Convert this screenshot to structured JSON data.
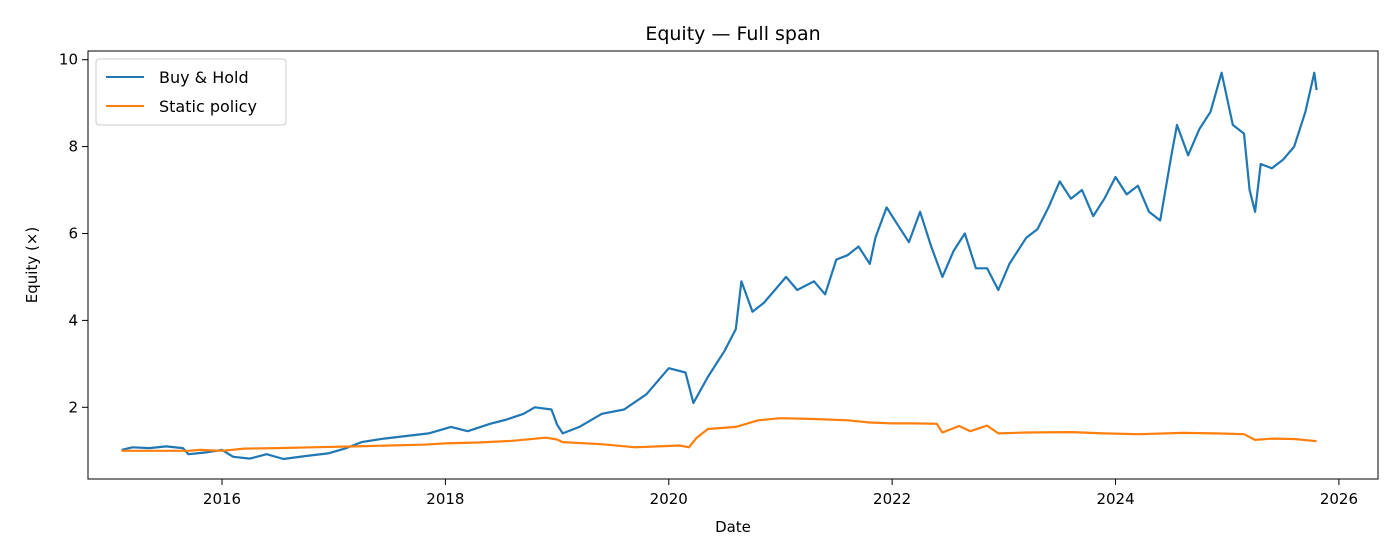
{
  "chart_data": {
    "type": "line",
    "title": "Equity — Full span",
    "xlabel": "Date",
    "ylabel": "Equity (×)",
    "x_ticks": [
      "2016",
      "2018",
      "2020",
      "2022",
      "2024",
      "2026"
    ],
    "y_ticks": [
      "2",
      "4",
      "6",
      "8",
      "10"
    ],
    "xlim": [
      2014.8,
      2026.35
    ],
    "ylim": [
      0.35,
      10.2
    ],
    "legend_position": "top-left",
    "grid": false,
    "series": [
      {
        "name": "Buy & Hold",
        "color": "#1f77b4",
        "points": [
          [
            2015.1,
            1.02
          ],
          [
            2015.2,
            1.08
          ],
          [
            2015.35,
            1.06
          ],
          [
            2015.5,
            1.1
          ],
          [
            2015.65,
            1.06
          ],
          [
            2015.7,
            0.92
          ],
          [
            2015.85,
            0.96
          ],
          [
            2016.0,
            1.02
          ],
          [
            2016.1,
            0.86
          ],
          [
            2016.25,
            0.82
          ],
          [
            2016.4,
            0.92
          ],
          [
            2016.55,
            0.81
          ],
          [
            2016.75,
            0.88
          ],
          [
            2016.95,
            0.94
          ],
          [
            2017.1,
            1.05
          ],
          [
            2017.25,
            1.2
          ],
          [
            2017.45,
            1.28
          ],
          [
            2017.65,
            1.34
          ],
          [
            2017.85,
            1.4
          ],
          [
            2018.05,
            1.55
          ],
          [
            2018.2,
            1.45
          ],
          [
            2018.4,
            1.62
          ],
          [
            2018.55,
            1.72
          ],
          [
            2018.7,
            1.85
          ],
          [
            2018.8,
            2.0
          ],
          [
            2018.95,
            1.95
          ],
          [
            2019.0,
            1.6
          ],
          [
            2019.05,
            1.4
          ],
          [
            2019.2,
            1.55
          ],
          [
            2019.4,
            1.85
          ],
          [
            2019.6,
            1.95
          ],
          [
            2019.8,
            2.3
          ],
          [
            2020.0,
            2.9
          ],
          [
            2020.15,
            2.8
          ],
          [
            2020.22,
            2.1
          ],
          [
            2020.35,
            2.7
          ],
          [
            2020.5,
            3.3
          ],
          [
            2020.6,
            3.8
          ],
          [
            2020.65,
            4.9
          ],
          [
            2020.75,
            4.2
          ],
          [
            2020.85,
            4.4
          ],
          [
            2020.95,
            4.7
          ],
          [
            2021.05,
            5.0
          ],
          [
            2021.15,
            4.7
          ],
          [
            2021.3,
            4.9
          ],
          [
            2021.4,
            4.6
          ],
          [
            2021.5,
            5.4
          ],
          [
            2021.6,
            5.5
          ],
          [
            2021.7,
            5.7
          ],
          [
            2021.8,
            5.3
          ],
          [
            2021.85,
            5.9
          ],
          [
            2021.95,
            6.6
          ],
          [
            2022.05,
            6.2
          ],
          [
            2022.15,
            5.8
          ],
          [
            2022.25,
            6.5
          ],
          [
            2022.35,
            5.7
          ],
          [
            2022.45,
            5.0
          ],
          [
            2022.55,
            5.6
          ],
          [
            2022.65,
            6.0
          ],
          [
            2022.75,
            5.2
          ],
          [
            2022.85,
            5.2
          ],
          [
            2022.95,
            4.7
          ],
          [
            2023.05,
            5.3
          ],
          [
            2023.2,
            5.9
          ],
          [
            2023.3,
            6.1
          ],
          [
            2023.4,
            6.6
          ],
          [
            2023.5,
            7.2
          ],
          [
            2023.6,
            6.8
          ],
          [
            2023.7,
            7.0
          ],
          [
            2023.8,
            6.4
          ],
          [
            2023.9,
            6.8
          ],
          [
            2024.0,
            7.3
          ],
          [
            2024.1,
            6.9
          ],
          [
            2024.2,
            7.1
          ],
          [
            2024.3,
            6.5
          ],
          [
            2024.4,
            6.3
          ],
          [
            2024.5,
            7.8
          ],
          [
            2024.55,
            8.5
          ],
          [
            2024.65,
            7.8
          ],
          [
            2024.75,
            8.4
          ],
          [
            2024.85,
            8.8
          ],
          [
            2024.95,
            9.7
          ],
          [
            2025.05,
            8.5
          ],
          [
            2025.15,
            8.3
          ],
          [
            2025.2,
            7.0
          ],
          [
            2025.25,
            6.5
          ],
          [
            2025.3,
            7.6
          ],
          [
            2025.4,
            7.5
          ],
          [
            2025.5,
            7.7
          ],
          [
            2025.6,
            8.0
          ],
          [
            2025.7,
            8.8
          ],
          [
            2025.78,
            9.7
          ],
          [
            2025.8,
            9.3
          ]
        ]
      },
      {
        "name": "Static policy",
        "color": "#ff7f0e",
        "points": [
          [
            2015.1,
            1.0
          ],
          [
            2015.5,
            1.0
          ],
          [
            2015.7,
            1.0
          ],
          [
            2015.8,
            1.02
          ],
          [
            2016.0,
            1.0
          ],
          [
            2016.2,
            1.05
          ],
          [
            2016.5,
            1.06
          ],
          [
            2016.8,
            1.08
          ],
          [
            2017.2,
            1.1
          ],
          [
            2017.5,
            1.12
          ],
          [
            2017.8,
            1.14
          ],
          [
            2018.0,
            1.17
          ],
          [
            2018.3,
            1.19
          ],
          [
            2018.6,
            1.23
          ],
          [
            2018.9,
            1.3
          ],
          [
            2019.0,
            1.26
          ],
          [
            2019.05,
            1.2
          ],
          [
            2019.4,
            1.15
          ],
          [
            2019.7,
            1.08
          ],
          [
            2019.9,
            1.1
          ],
          [
            2020.1,
            1.12
          ],
          [
            2020.18,
            1.08
          ],
          [
            2020.25,
            1.3
          ],
          [
            2020.35,
            1.5
          ],
          [
            2020.6,
            1.55
          ],
          [
            2020.8,
            1.7
          ],
          [
            2021.0,
            1.75
          ],
          [
            2021.3,
            1.73
          ],
          [
            2021.6,
            1.7
          ],
          [
            2021.8,
            1.65
          ],
          [
            2022.0,
            1.63
          ],
          [
            2022.2,
            1.63
          ],
          [
            2022.4,
            1.62
          ],
          [
            2022.45,
            1.42
          ],
          [
            2022.6,
            1.57
          ],
          [
            2022.7,
            1.45
          ],
          [
            2022.85,
            1.58
          ],
          [
            2022.95,
            1.4
          ],
          [
            2023.2,
            1.42
          ],
          [
            2023.6,
            1.43
          ],
          [
            2023.9,
            1.4
          ],
          [
            2024.2,
            1.38
          ],
          [
            2024.6,
            1.41
          ],
          [
            2024.9,
            1.4
          ],
          [
            2025.15,
            1.38
          ],
          [
            2025.25,
            1.25
          ],
          [
            2025.4,
            1.28
          ],
          [
            2025.6,
            1.27
          ],
          [
            2025.8,
            1.22
          ]
        ]
      }
    ]
  }
}
